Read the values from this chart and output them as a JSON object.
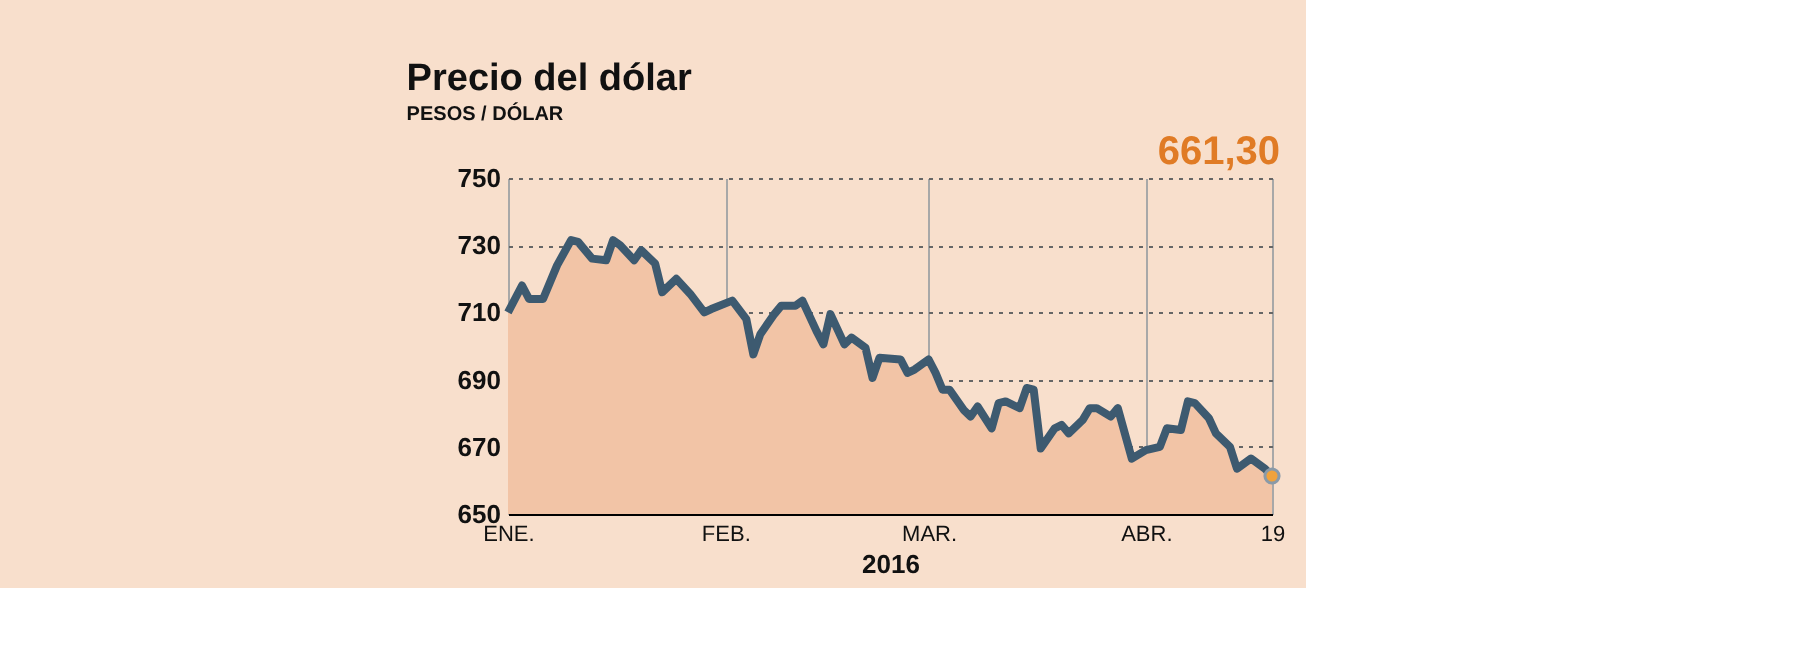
{
  "chart_data": {
    "type": "area",
    "title": "Precio del dólar",
    "subtitle": "PESOS / DÓLAR",
    "xlabel": "2016",
    "x": [
      "2016-01-01",
      "2016-01-03",
      "2016-01-04",
      "2016-01-06",
      "2016-01-08",
      "2016-01-10",
      "2016-01-11",
      "2016-01-13",
      "2016-01-15",
      "2016-01-16",
      "2016-01-17",
      "2016-01-19",
      "2016-01-20",
      "2016-01-22",
      "2016-01-23",
      "2016-01-25",
      "2016-01-27",
      "2016-01-29",
      "2016-01-30",
      "2016-02-02",
      "2016-02-04",
      "2016-02-05",
      "2016-02-06",
      "2016-02-08",
      "2016-02-09",
      "2016-02-11",
      "2016-02-12",
      "2016-02-14",
      "2016-02-15",
      "2016-02-16",
      "2016-02-18",
      "2016-02-19",
      "2016-02-21",
      "2016-02-22",
      "2016-02-23",
      "2016-02-26",
      "2016-02-27",
      "2016-02-28",
      "2016-03-01",
      "2016-03-02",
      "2016-03-03",
      "2016-03-04",
      "2016-03-06",
      "2016-03-07",
      "2016-03-08",
      "2016-03-10",
      "2016-03-11",
      "2016-03-12",
      "2016-03-14",
      "2016-03-15",
      "2016-03-16",
      "2016-03-17",
      "2016-03-19",
      "2016-03-20",
      "2016-03-21",
      "2016-03-23",
      "2016-03-24",
      "2016-03-25",
      "2016-03-27",
      "2016-03-28",
      "2016-03-30",
      "2016-04-01",
      "2016-04-03",
      "2016-04-04",
      "2016-04-06",
      "2016-04-07",
      "2016-04-08",
      "2016-04-10",
      "2016-04-11",
      "2016-04-13",
      "2016-04-14",
      "2016-04-16",
      "2016-04-18",
      "2016-04-19"
    ],
    "series": [
      {
        "type": "scatter",
        "color": "#f0a23c",
        "marker": "circle",
        "x": [
          "2016-04-19"
        ],
        "values": [
          661.3
        ]
      },
      {
        "color": "#f2c4a6",
        "values": [
          710,
          718,
          714,
          714,
          724,
          731.5,
          731,
          726,
          725.5,
          731.5,
          730,
          725.5,
          728.5,
          724.5,
          716,
          720,
          715.5,
          710,
          711,
          713.5,
          708,
          697.5,
          703.5,
          709.5,
          712,
          712,
          713.5,
          704.5,
          700.5,
          709.5,
          700.5,
          702.5,
          699.5,
          690.5,
          696.5,
          696,
          692,
          693,
          696,
          692,
          687,
          687,
          681,
          679,
          682,
          675.5,
          683,
          683.5,
          681.5,
          687.5,
          687,
          669.5,
          675.5,
          676.5,
          674,
          678,
          681.5,
          681.5,
          679,
          681.5,
          666.5,
          669,
          670,
          675.5,
          675,
          683.5,
          683,
          678.5,
          674,
          670,
          663.5,
          666.5,
          663.5,
          661.3
        ]
      },
      {
        "type": "line",
        "color": "#3d5a70",
        "values": [
          710,
          718,
          714,
          714,
          724,
          731.5,
          731,
          726,
          725.5,
          731.5,
          730,
          725.5,
          728.5,
          724.5,
          716,
          720,
          715.5,
          710,
          711,
          713.5,
          708,
          697.5,
          703.5,
          709.5,
          712,
          712,
          713.5,
          704.5,
          700.5,
          709.5,
          700.5,
          702.5,
          699.5,
          690.5,
          696.5,
          696,
          692,
          693,
          696,
          692,
          687,
          687,
          681,
          679,
          682,
          675.5,
          683,
          683.5,
          681.5,
          687.5,
          687,
          669.5,
          675.5,
          676.5,
          674,
          678,
          681.5,
          681.5,
          679,
          681.5,
          666.5,
          669,
          670,
          675.5,
          675,
          683.5,
          683,
          678.5,
          674,
          670,
          663.5,
          666.5,
          663.5,
          661.3
        ]
      }
    ],
    "ylim": [
      650,
      750
    ],
    "yticks": [
      650,
      670,
      690,
      710,
      730,
      750
    ],
    "xlim": [
      "2016-01-01",
      "2016-04-19"
    ],
    "xticks": [
      {
        "value": "2016-01-01",
        "label": "ENE."
      },
      {
        "value": "2016-02-01",
        "label": "FEB."
      },
      {
        "value": "2016-03-01",
        "label": "MAR."
      },
      {
        "value": "2016-04-01",
        "label": "ABR."
      },
      {
        "value": "2016-04-19",
        "label": "19"
      }
    ],
    "grid": true,
    "annotations": [
      "661,30"
    ]
  }
}
